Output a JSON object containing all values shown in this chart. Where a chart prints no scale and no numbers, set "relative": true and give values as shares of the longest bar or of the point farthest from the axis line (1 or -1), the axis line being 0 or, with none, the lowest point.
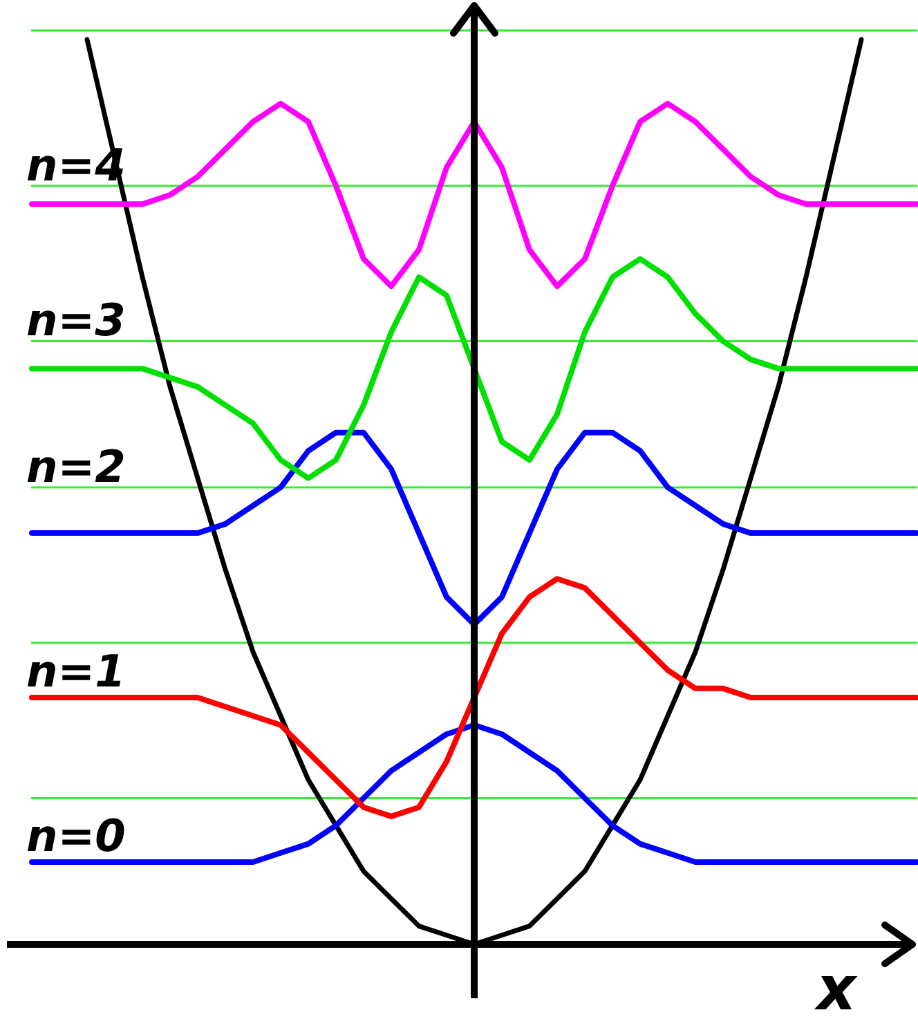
{
  "chart_data": {
    "type": "line",
    "relative": true,
    "xlabel": "x",
    "categories": [
      null,
      null,
      null,
      null,
      null,
      null,
      null,
      null,
      null,
      null,
      null,
      null,
      null,
      null,
      null,
      null,
      null,
      null,
      null,
      null,
      null,
      null,
      null,
      null,
      null,
      null,
      null,
      null,
      null,
      null,
      null,
      null,
      null
    ],
    "series": [
      {
        "color": "#33ee33",
        "values": [
          1.0,
          1.0,
          1.0,
          1.0,
          1.0,
          1.0,
          1.0,
          1.0,
          1.0,
          1.0,
          1.0,
          1.0,
          1.0,
          1.0,
          1.0,
          1.0,
          1.0,
          1.0,
          1.0,
          1.0,
          1.0,
          1.0,
          1.0,
          1.0,
          1.0,
          1.0,
          1.0,
          1.0,
          1.0,
          1.0,
          1.0,
          1.0,
          1.0
        ]
      },
      {
        "color": "#33ee33",
        "values": [
          0.83,
          0.83,
          0.83,
          0.83,
          0.83,
          0.83,
          0.83,
          0.83,
          0.83,
          0.83,
          0.83,
          0.83,
          0.83,
          0.83,
          0.83,
          0.83,
          0.83,
          0.83,
          0.83,
          0.83,
          0.83,
          0.83,
          0.83,
          0.83,
          0.83,
          0.83,
          0.83,
          0.83,
          0.83,
          0.83,
          0.83,
          0.83,
          0.83
        ]
      },
      {
        "color": "#33ee33",
        "values": [
          0.66,
          0.66,
          0.66,
          0.66,
          0.66,
          0.66,
          0.66,
          0.66,
          0.66,
          0.66,
          0.66,
          0.66,
          0.66,
          0.66,
          0.66,
          0.66,
          0.66,
          0.66,
          0.66,
          0.66,
          0.66,
          0.66,
          0.66,
          0.66,
          0.66,
          0.66,
          0.66,
          0.66,
          0.66,
          0.66,
          0.66,
          0.66,
          0.66
        ]
      },
      {
        "color": "#33ee33",
        "values": [
          0.5,
          0.5,
          0.5,
          0.5,
          0.5,
          0.5,
          0.5,
          0.5,
          0.5,
          0.5,
          0.5,
          0.5,
          0.5,
          0.5,
          0.5,
          0.5,
          0.5,
          0.5,
          0.5,
          0.5,
          0.5,
          0.5,
          0.5,
          0.5,
          0.5,
          0.5,
          0.5,
          0.5,
          0.5,
          0.5,
          0.5,
          0.5,
          0.5
        ]
      },
      {
        "color": "#33ee33",
        "values": [
          0.33,
          0.33,
          0.33,
          0.33,
          0.33,
          0.33,
          0.33,
          0.33,
          0.33,
          0.33,
          0.33,
          0.33,
          0.33,
          0.33,
          0.33,
          0.33,
          0.33,
          0.33,
          0.33,
          0.33,
          0.33,
          0.33,
          0.33,
          0.33,
          0.33,
          0.33,
          0.33,
          0.33,
          0.33,
          0.33,
          0.33,
          0.33,
          0.33
        ]
      },
      {
        "color": "#33ee33",
        "values": [
          0.16,
          0.16,
          0.16,
          0.16,
          0.16,
          0.16,
          0.16,
          0.16,
          0.16,
          0.16,
          0.16,
          0.16,
          0.16,
          0.16,
          0.16,
          0.16,
          0.16,
          0.16,
          0.16,
          0.16,
          0.16,
          0.16,
          0.16,
          0.16,
          0.16,
          0.16,
          0.16,
          0.16,
          0.16,
          0.16,
          0.16,
          0.16,
          0.16
        ]
      },
      {
        "color": "#000000",
        "values": [
          null,
          null,
          0.99,
          0.86,
          0.73,
          0.61,
          0.51,
          0.41,
          0.32,
          0.25,
          0.18,
          0.13,
          0.08,
          0.05,
          0.02,
          0.01,
          0,
          0.01,
          0.02,
          0.05,
          0.08,
          0.13,
          0.18,
          0.25,
          0.32,
          0.41,
          0.51,
          0.61,
          0.73,
          0.86,
          0.99,
          null,
          null
        ]
      },
      {
        "name": "n=0",
        "color": "#0000ff",
        "values": [
          0.09,
          0.09,
          0.09,
          0.09,
          0.09,
          0.09,
          0.09,
          0.09,
          0.09,
          0.1,
          0.11,
          0.13,
          0.16,
          0.19,
          0.21,
          0.23,
          0.24,
          0.23,
          0.21,
          0.19,
          0.16,
          0.13,
          0.11,
          0.1,
          0.09,
          0.09,
          0.09,
          0.09,
          0.09,
          0.09,
          0.09,
          0.09,
          0.09
        ]
      },
      {
        "name": "n=1",
        "color": "#ff0000",
        "values": [
          0.27,
          0.27,
          0.27,
          0.27,
          0.27,
          0.27,
          0.27,
          0.26,
          0.25,
          0.24,
          0.21,
          0.18,
          0.15,
          0.14,
          0.15,
          0.2,
          0.27,
          0.34,
          0.38,
          0.4,
          0.39,
          0.36,
          0.33,
          0.3,
          0.28,
          0.28,
          0.27,
          0.27,
          0.27,
          0.27,
          0.27,
          0.27,
          0.27
        ]
      },
      {
        "name": "n=2",
        "color": "#0000ff",
        "values": [
          0.45,
          0.45,
          0.45,
          0.45,
          0.45,
          0.45,
          0.45,
          0.46,
          0.48,
          0.5,
          0.54,
          0.56,
          0.56,
          0.52,
          0.45,
          0.38,
          0.35,
          0.38,
          0.45,
          0.52,
          0.56,
          0.56,
          0.54,
          0.5,
          0.48,
          0.46,
          0.45,
          0.45,
          0.45,
          0.45,
          0.45,
          0.45,
          0.45
        ]
      },
      {
        "name": "n=3",
        "color": "#00e000",
        "values": [
          0.63,
          0.63,
          0.63,
          0.63,
          0.63,
          0.62,
          0.61,
          0.59,
          0.57,
          0.53,
          0.51,
          0.53,
          0.59,
          0.67,
          0.73,
          0.71,
          0.63,
          0.55,
          0.53,
          0.58,
          0.67,
          0.73,
          0.75,
          0.73,
          0.69,
          0.66,
          0.64,
          0.63,
          0.63,
          0.63,
          0.63,
          0.63,
          0.63
        ]
      },
      {
        "name": "n=4",
        "color": "#ff00ff",
        "values": [
          0.81,
          0.81,
          0.81,
          0.81,
          0.81,
          0.82,
          0.84,
          0.87,
          0.9,
          0.92,
          0.9,
          0.83,
          0.75,
          0.72,
          0.76,
          0.85,
          0.9,
          0.85,
          0.76,
          0.72,
          0.75,
          0.83,
          0.9,
          0.92,
          0.9,
          0.87,
          0.84,
          0.82,
          0.81,
          0.81,
          0.81,
          0.81,
          0.81
        ]
      }
    ]
  }
}
